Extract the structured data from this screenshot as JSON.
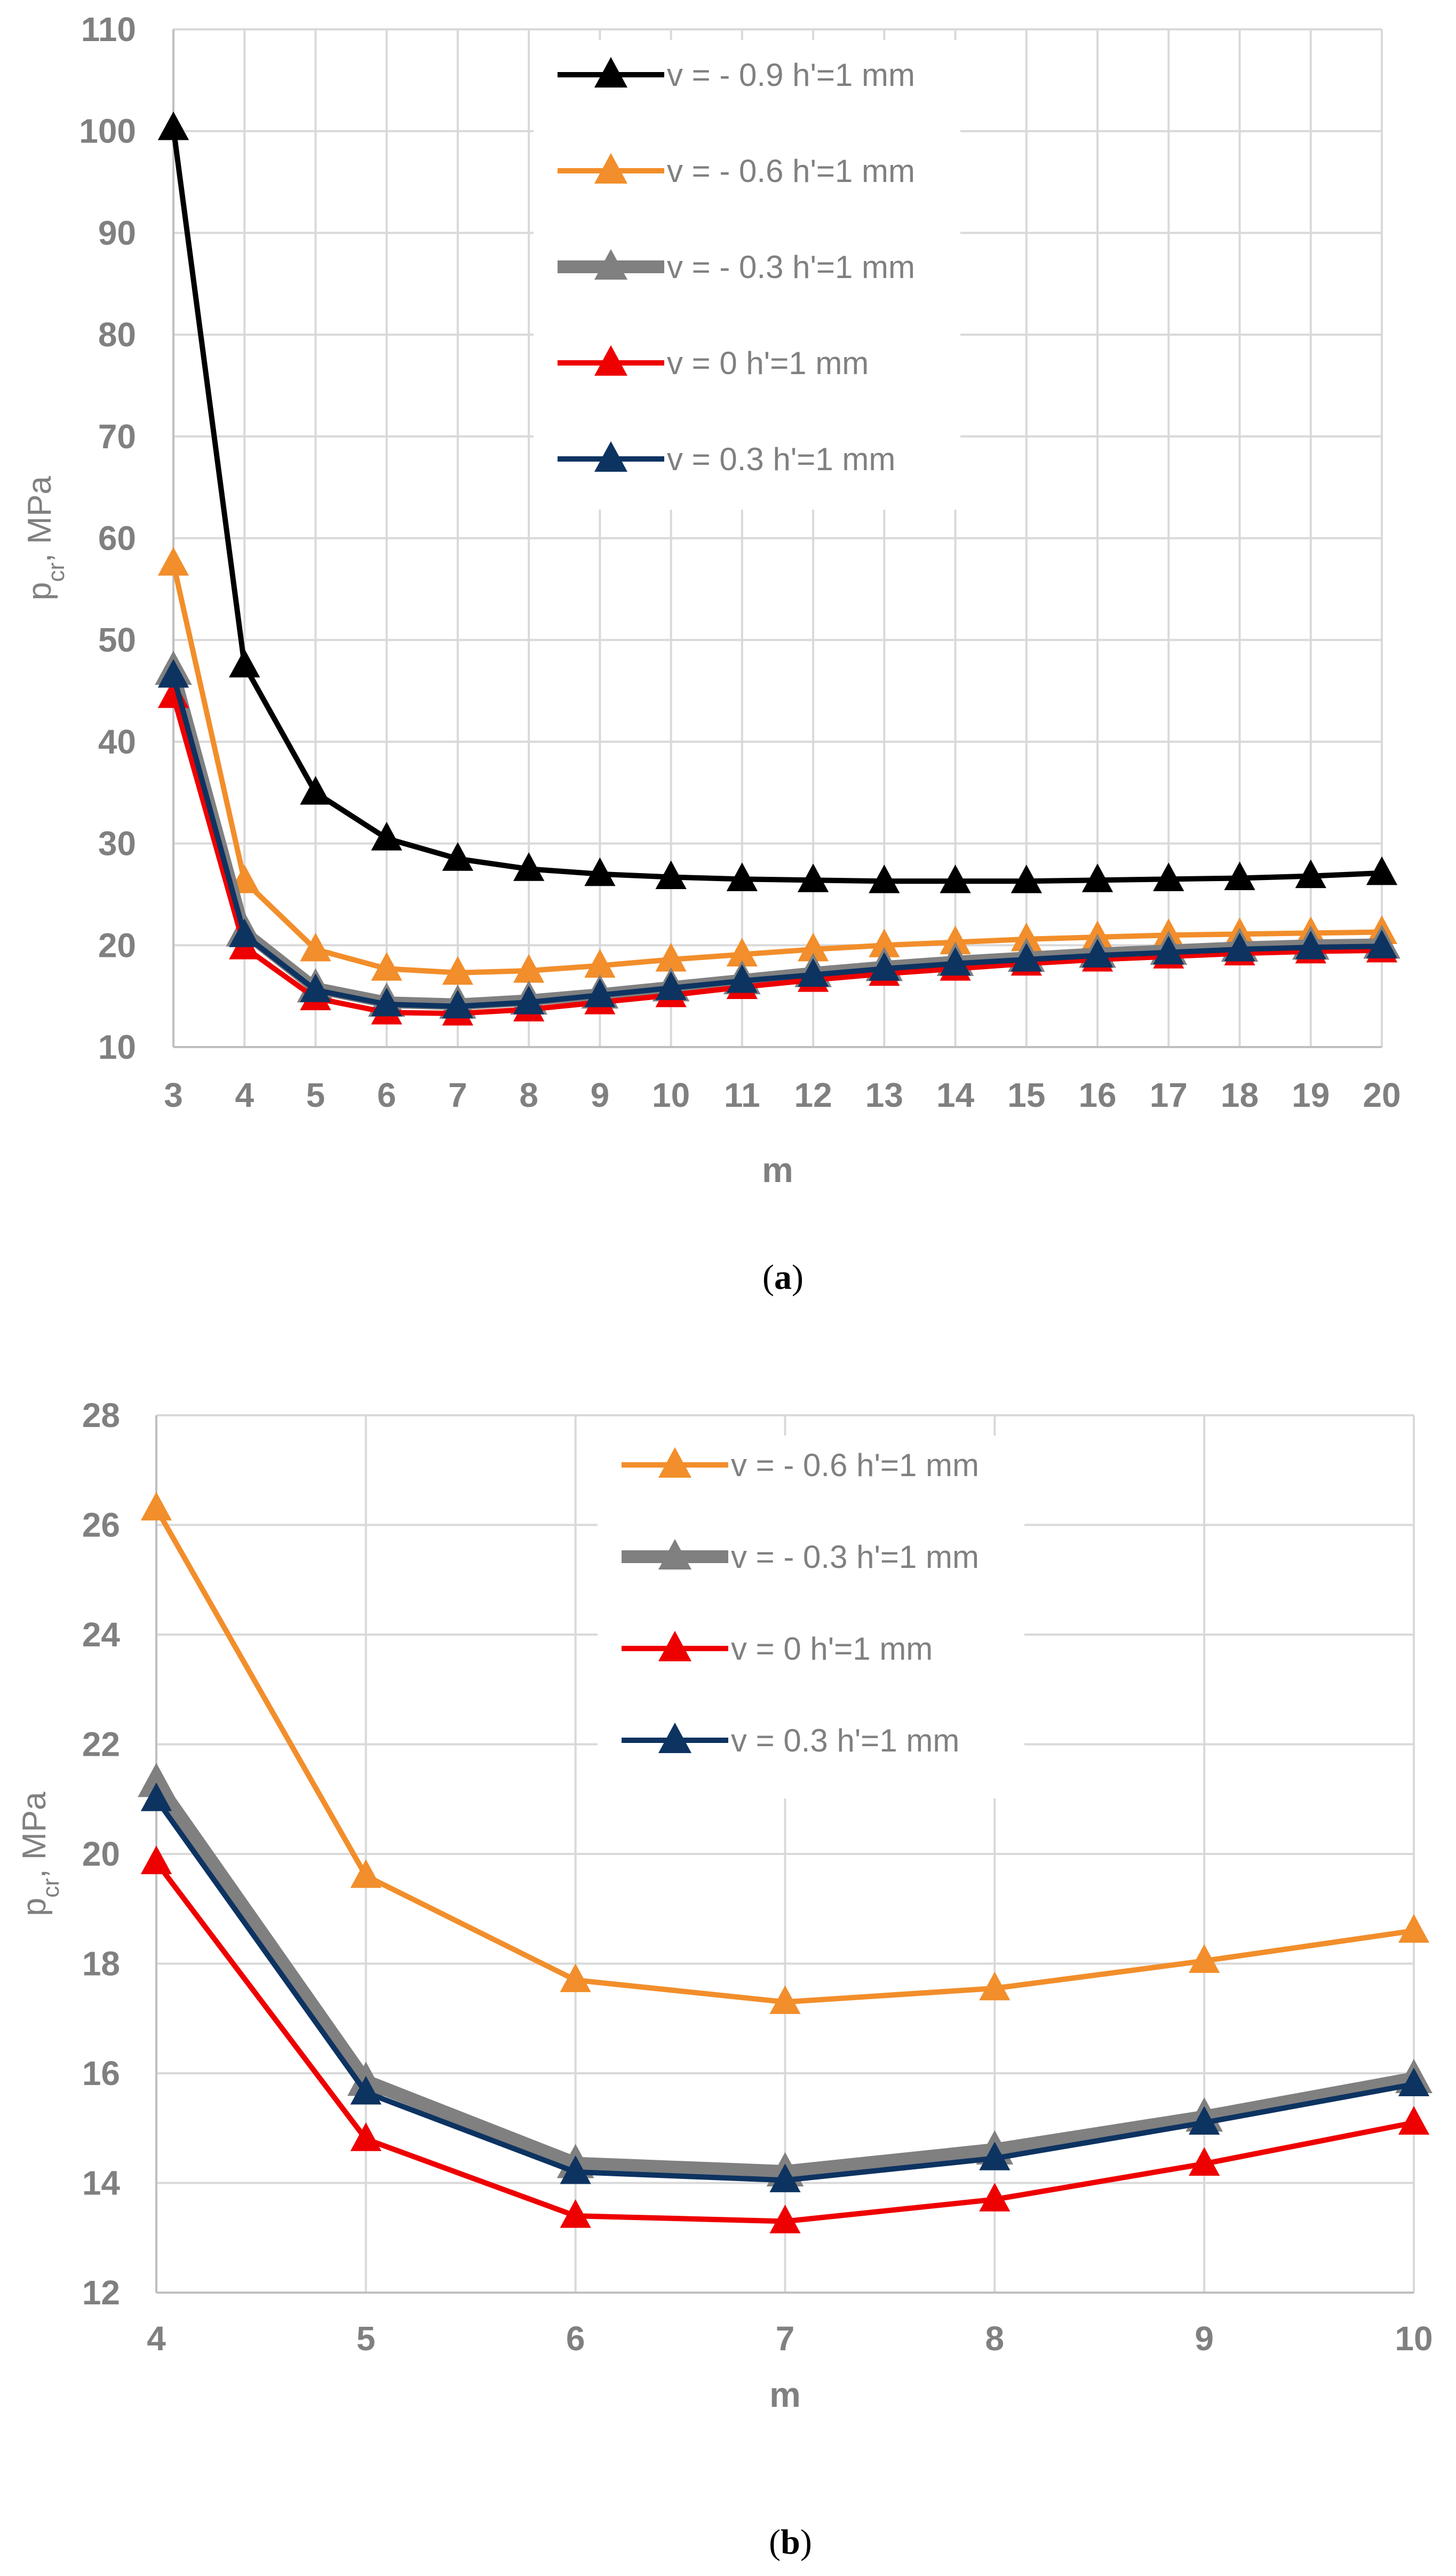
{
  "chart_data": [
    {
      "type": "line",
      "caption": "a",
      "title": "",
      "xlabel": "m",
      "ylabel": "p",
      "ylabel_sub": "cr",
      "ylabel_unit": ", MPa",
      "xlim": [
        3,
        20
      ],
      "ylim": [
        10,
        110
      ],
      "yticks": [
        10,
        20,
        30,
        40,
        50,
        60,
        70,
        80,
        90,
        100,
        110
      ],
      "x": [
        3,
        4,
        5,
        6,
        7,
        8,
        9,
        10,
        11,
        12,
        13,
        14,
        15,
        16,
        17,
        18,
        19,
        20
      ],
      "legend_position": "top-right",
      "series": [
        {
          "name": "v = - 0.9 h'=1 mm",
          "color": "#000000",
          "width": 10,
          "values": [
            100.3,
            47.5,
            35.0,
            30.5,
            28.5,
            27.5,
            27.0,
            26.7,
            26.5,
            26.4,
            26.3,
            26.3,
            26.3,
            26.4,
            26.5,
            26.6,
            26.8,
            27.1
          ]
        },
        {
          "name": "v = - 0.6 h'=1 mm",
          "color": "#f28e2b",
          "width": 10,
          "values": [
            57.5,
            26.3,
            19.6,
            17.7,
            17.3,
            17.5,
            18.0,
            18.6,
            19.1,
            19.6,
            20.0,
            20.3,
            20.6,
            20.8,
            21.0,
            21.1,
            21.2,
            21.3
          ]
        },
        {
          "name": "v = - 0.3 h'=1 mm",
          "color": "#808080",
          "width": 22,
          "values": [
            47.0,
            21.3,
            15.8,
            14.4,
            14.2,
            14.6,
            15.2,
            15.9,
            16.6,
            17.3,
            17.9,
            18.4,
            18.8,
            19.2,
            19.5,
            19.8,
            20.0,
            20.1
          ]
        },
        {
          "name": "v = 0 h'=1 mm",
          "color": "#ee0000",
          "width": 10,
          "values": [
            44.5,
            19.8,
            14.8,
            13.4,
            13.3,
            13.7,
            14.4,
            15.1,
            15.9,
            16.6,
            17.2,
            17.7,
            18.2,
            18.6,
            18.9,
            19.2,
            19.4,
            19.5
          ]
        },
        {
          "name": "v = 0.3 h'=1 mm",
          "color": "#0d3361",
          "width": 10,
          "values": [
            46.5,
            21.0,
            15.6,
            14.2,
            14.0,
            14.4,
            15.1,
            15.8,
            16.5,
            17.1,
            17.7,
            18.2,
            18.6,
            19.0,
            19.3,
            19.6,
            19.8,
            19.9
          ]
        }
      ]
    },
    {
      "type": "line",
      "caption": "b",
      "title": "",
      "xlabel": "m",
      "ylabel": "p",
      "ylabel_sub": "cr",
      "ylabel_unit": ", MPa",
      "xlim": [
        4,
        10
      ],
      "ylim": [
        12,
        28
      ],
      "yticks": [
        12,
        14,
        16,
        18,
        20,
        22,
        24,
        26,
        28
      ],
      "x": [
        4,
        5,
        6,
        7,
        8,
        9,
        10
      ],
      "legend_position": "top-right",
      "series": [
        {
          "name": "v = - 0.6 h'=1 mm",
          "color": "#f28e2b",
          "width": 10,
          "values": [
            26.3,
            19.6,
            17.7,
            17.3,
            17.55,
            18.05,
            18.6
          ]
        },
        {
          "name": "v = - 0.3 h'=1 mm",
          "color": "#808080",
          "width": 26,
          "values": [
            21.3,
            15.85,
            14.35,
            14.2,
            14.6,
            15.2,
            15.9
          ]
        },
        {
          "name": "v = 0 h'=1 mm",
          "color": "#ee0000",
          "width": 10,
          "values": [
            19.85,
            14.8,
            13.4,
            13.3,
            13.7,
            14.35,
            15.1
          ]
        },
        {
          "name": "v = 0.3 h'=1 mm",
          "color": "#0d3361",
          "width": 10,
          "values": [
            21.0,
            15.65,
            14.2,
            14.05,
            14.45,
            15.1,
            15.8
          ]
        }
      ]
    }
  ]
}
